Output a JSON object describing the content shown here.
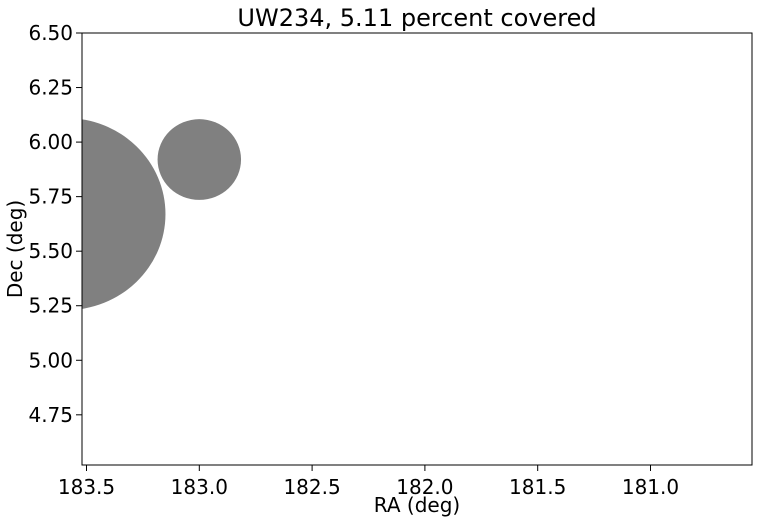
{
  "chart_data": {
    "type": "scatter",
    "title": "UW234, 5.11 percent covered",
    "xlabel": "RA (deg)",
    "ylabel": "Dec (deg)",
    "xlim": [
      183.52,
      180.55
    ],
    "ylim": [
      4.52,
      6.5
    ],
    "x_reversed": true,
    "grid": false,
    "xticks": [
      183.5,
      183.0,
      182.5,
      182.0,
      181.5,
      181.0
    ],
    "xtick_labels": [
      "183.5",
      "183.0",
      "182.5",
      "182.0",
      "181.5",
      "181.0"
    ],
    "yticks": [
      4.75,
      5.0,
      5.25,
      5.5,
      5.75,
      6.0,
      6.25,
      6.5
    ],
    "ytick_labels": [
      "4.75",
      "5.00",
      "5.25",
      "5.50",
      "5.75",
      "6.00",
      "6.25",
      "6.50"
    ],
    "circles": [
      {
        "ra": 183.59,
        "dec": 5.67,
        "radius_deg": 0.44
      },
      {
        "ra": 183.0,
        "dec": 5.92,
        "radius_deg": 0.185
      }
    ],
    "circle_color": "#808080"
  }
}
